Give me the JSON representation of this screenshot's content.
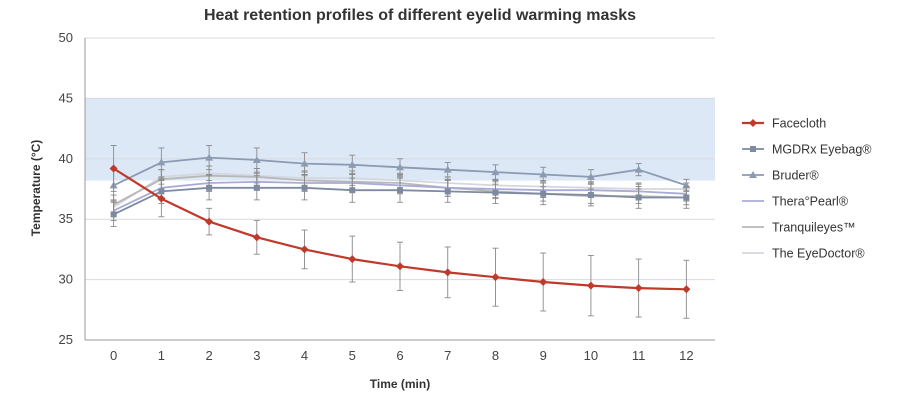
{
  "chart_data": {
    "type": "line",
    "title": "Heat retention profiles of different eyelid warming masks",
    "xlabel": "Time (min)",
    "ylabel": "Temperature (°C)",
    "x": [
      0,
      1,
      2,
      3,
      4,
      5,
      6,
      7,
      8,
      9,
      10,
      11,
      12
    ],
    "ylim": [
      25,
      50
    ],
    "yticks": [
      25,
      30,
      35,
      40,
      45,
      50
    ],
    "band": {
      "ymin": 38.2,
      "ymax": 45,
      "color": "#dce8f6"
    },
    "grid": true,
    "legend_position": "right",
    "series": [
      {
        "name": "Facecloth",
        "color": "#c0392b",
        "marker": "diamond",
        "values": [
          39.2,
          36.7,
          34.8,
          33.5,
          32.5,
          31.7,
          31.1,
          30.6,
          30.2,
          29.8,
          29.5,
          29.3,
          29.2
        ],
        "errors": [
          1.9,
          1.5,
          1.1,
          1.4,
          1.6,
          1.9,
          2.0,
          2.1,
          2.4,
          2.4,
          2.5,
          2.4,
          2.4
        ]
      },
      {
        "name": "MGDRx Eyebag®",
        "color": "#7d8aa0",
        "marker": "square",
        "values": [
          35.4,
          37.3,
          37.6,
          37.6,
          37.6,
          37.4,
          37.4,
          37.3,
          37.2,
          37.1,
          37.0,
          36.8,
          36.8
        ],
        "errors": [
          1.0,
          1.0,
          1.0,
          1.0,
          1.0,
          1.0,
          1.0,
          0.9,
          0.9,
          0.9,
          0.9,
          0.9,
          0.9
        ]
      },
      {
        "name": "Bruder®",
        "color": "#8c9ab2",
        "marker": "triangle",
        "values": [
          37.8,
          39.7,
          40.1,
          39.9,
          39.6,
          39.5,
          39.3,
          39.1,
          38.9,
          38.7,
          38.5,
          39.1,
          37.8
        ],
        "errors": [
          1.3,
          1.2,
          1.0,
          1.0,
          0.9,
          0.8,
          0.7,
          0.6,
          0.6,
          0.6,
          0.6,
          0.5,
          0.5
        ]
      },
      {
        "name": "Thera°Pearl®",
        "color": "#a9abd6",
        "marker": "none",
        "values": [
          35.7,
          37.6,
          38.0,
          38.1,
          38.0,
          38.0,
          37.8,
          37.6,
          37.5,
          37.4,
          37.4,
          37.3,
          37.1
        ],
        "errors": [
          0.8,
          0.8,
          0.7,
          0.7,
          0.7,
          0.7,
          0.7,
          0.7,
          0.7,
          0.6,
          0.6,
          0.6,
          0.6
        ]
      },
      {
        "name": "Tranquileyes™",
        "color": "#b8b8b8",
        "marker": "none",
        "values": [
          36.2,
          38.3,
          38.6,
          38.5,
          38.2,
          38.1,
          38.0,
          37.6,
          37.3,
          37.1,
          36.9,
          36.9,
          36.8
        ],
        "errors": [
          0.8,
          0.8,
          0.8,
          0.7,
          0.7,
          0.7,
          0.7,
          0.7,
          0.6,
          0.6,
          0.6,
          0.6,
          0.6
        ]
      },
      {
        "name": "The EyeDoctor®",
        "color": "#d4d7e0",
        "marker": "none",
        "values": [
          36.0,
          38.5,
          38.8,
          38.6,
          38.4,
          38.4,
          38.2,
          38.0,
          37.8,
          37.7,
          37.6,
          37.5,
          37.5
        ],
        "errors": [
          0.6,
          0.6,
          0.6,
          0.6,
          0.6,
          0.6,
          0.6,
          0.5,
          0.5,
          0.5,
          0.5,
          0.5,
          0.5
        ]
      }
    ]
  }
}
